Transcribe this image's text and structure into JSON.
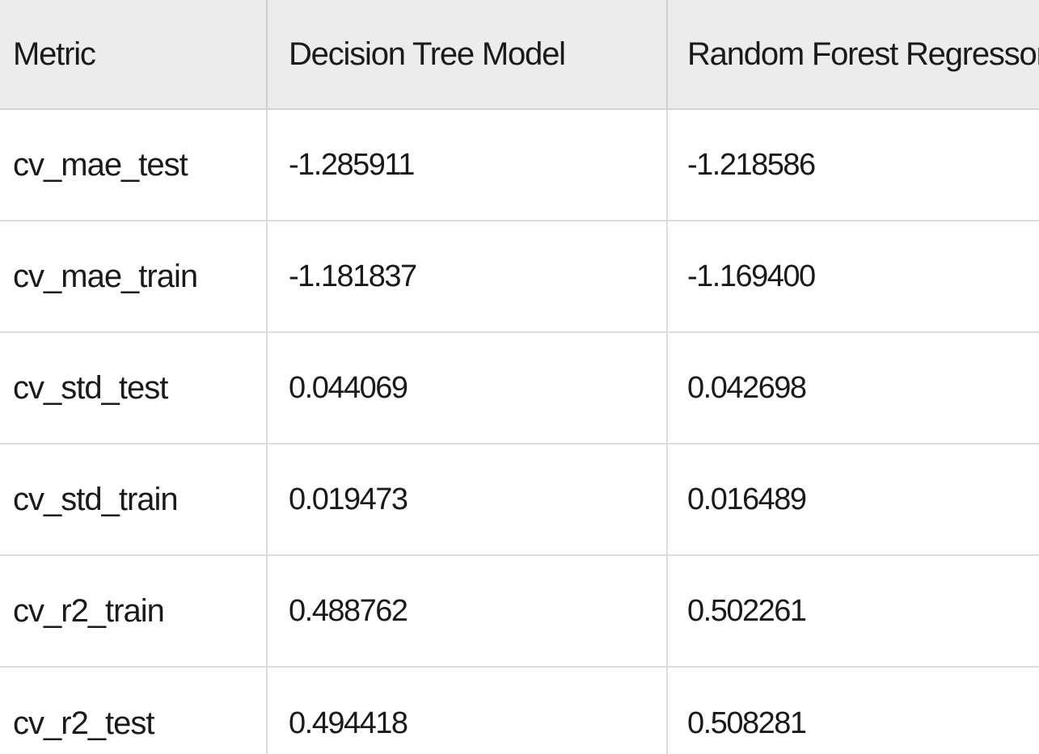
{
  "table": {
    "headers": [
      "Metric",
      "Decision Tree Model",
      "Random Forest Regressor (RFR)"
    ],
    "rows": [
      [
        "cv_mae_test",
        "-1.285911",
        "-1.218586"
      ],
      [
        "cv_mae_train",
        "-1.181837",
        "-1.169400"
      ],
      [
        "cv_std_test",
        "0.044069",
        "0.042698"
      ],
      [
        "cv_std_train",
        "0.019473",
        "0.016489"
      ],
      [
        "cv_r2_train",
        "0.488762",
        "0.502261"
      ],
      [
        "cv_r2_test",
        "0.494418",
        "0.508281"
      ]
    ]
  }
}
